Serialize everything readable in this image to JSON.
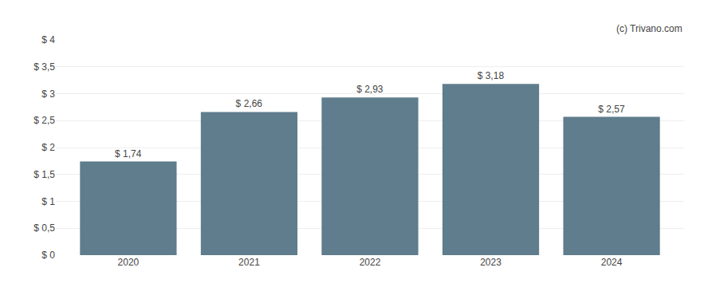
{
  "chart_data": {
    "type": "bar",
    "categories": [
      "2020",
      "2021",
      "2022",
      "2023",
      "2024"
    ],
    "values": [
      1.74,
      2.66,
      2.93,
      3.18,
      2.57
    ],
    "value_labels": [
      "$ 1,74",
      "$ 2,66",
      "$ 2,93",
      "$ 3,18",
      "$ 2,57"
    ],
    "data_labels": true,
    "color": "#5f7d8c",
    "ylim": [
      0,
      4
    ],
    "yticks": [
      {
        "value": 0,
        "label": "$ 0"
      },
      {
        "value": 0.5,
        "label": "$ 0,5"
      },
      {
        "value": 1.0,
        "label": "$ 1"
      },
      {
        "value": 1.5,
        "label": "$ 1,5"
      },
      {
        "value": 2.0,
        "label": "$ 2"
      },
      {
        "value": 2.5,
        "label": "$ 2,5"
      },
      {
        "value": 3.0,
        "label": "$ 3"
      },
      {
        "value": 3.5,
        "label": "$ 3,5"
      },
      {
        "value": 4.0,
        "label": "$ 4"
      }
    ],
    "grid": true,
    "annotations": [
      "(c) Trivano.com"
    ]
  }
}
